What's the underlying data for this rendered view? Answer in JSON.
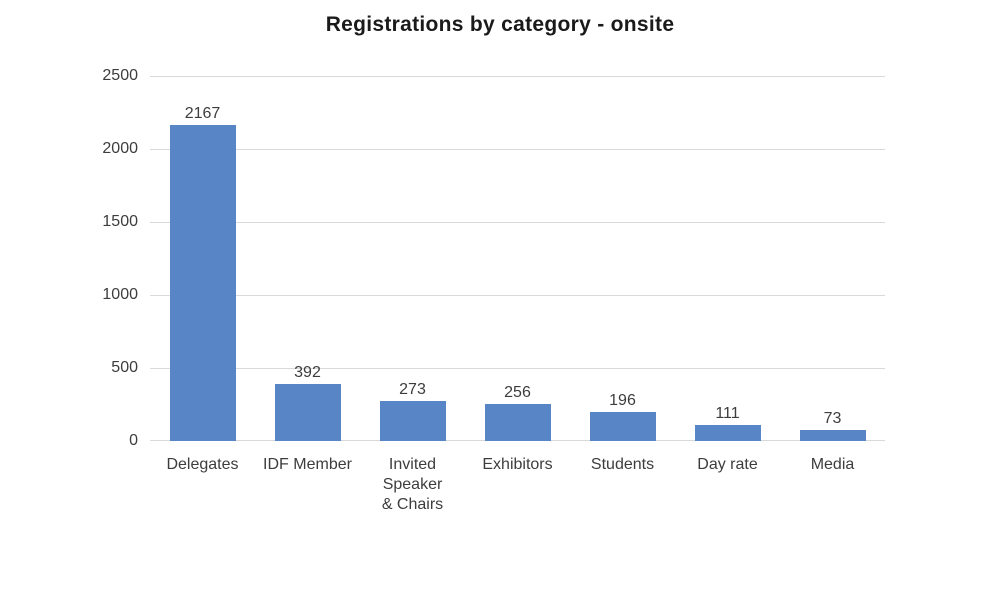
{
  "chart_data": {
    "type": "bar",
    "title": "Registrations by category - onsite",
    "categories": [
      "Delegates",
      "IDF Member",
      "Invited Speaker & Chairs",
      "Exhibitors",
      "Students",
      "Day rate",
      "Media"
    ],
    "labels_display": [
      "Delegates",
      "IDF Member",
      "Invited\nSpeaker\n& Chairs",
      "Exhibitors",
      "Students",
      "Day rate",
      "Media"
    ],
    "values": [
      2167,
      392,
      273,
      256,
      196,
      111,
      73
    ],
    "xlabel": "",
    "ylabel": "",
    "ylim": [
      0,
      2500
    ],
    "yticks": [
      0,
      500,
      1000,
      1500,
      2000,
      2500
    ],
    "ytick_labels_top_to_bottom": [
      "2500",
      "2000",
      "1500",
      "1000",
      "500",
      "0"
    ],
    "grid": true,
    "legend": "none",
    "bar_color": "#5885c6",
    "gridline_color": "#d9d9d9",
    "text_color": "#3d3d3d",
    "title_color": "#1a1a1a",
    "background": "#ffffff"
  }
}
